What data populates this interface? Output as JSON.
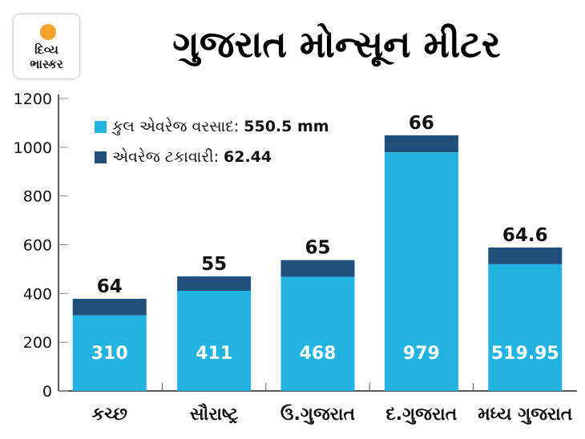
{
  "logo": {
    "line1": "દિવ્ય",
    "line2": "ભાસ્કર"
  },
  "title": "ગુજરાત મોન્સૂન મીટર",
  "colors": {
    "rain": "#22b3e0",
    "percent": "#1f4f7a"
  },
  "legend": [
    {
      "label": "કુલ એવરેજ વરસાદ:",
      "value": "550.5 mm"
    },
    {
      "label": "એવરેજ ટકાવારી:",
      "value": "62.44"
    }
  ],
  "chart_data": {
    "type": "bar",
    "stacked": true,
    "title": "ગુજરાત મોન્સૂન મીટર",
    "categories": [
      "કચ્છ",
      "સૌરાષ્ટ્ર",
      "ઉ.ગુજરાત",
      "દ.ગુજરાત",
      "મધ્ય ગુજરાત"
    ],
    "series": [
      {
        "name": "કુલ એવરેજ વરસાદ",
        "values": [
          310,
          411,
          468,
          979,
          519.95
        ],
        "labels": [
          "310",
          "411",
          "468",
          "979",
          "519.95"
        ]
      },
      {
        "name": "એવરેજ ટકાવારી",
        "values": [
          64,
          55,
          65,
          66,
          64.6
        ],
        "labels": [
          "64",
          "55",
          "65",
          "66",
          "64.6"
        ]
      }
    ],
    "yticks": [
      "0",
      "200",
      "400",
      "600",
      "800",
      "1000",
      "1200"
    ],
    "ylim": [
      0,
      1200
    ],
    "grid": false,
    "legend_position": "top-left"
  }
}
